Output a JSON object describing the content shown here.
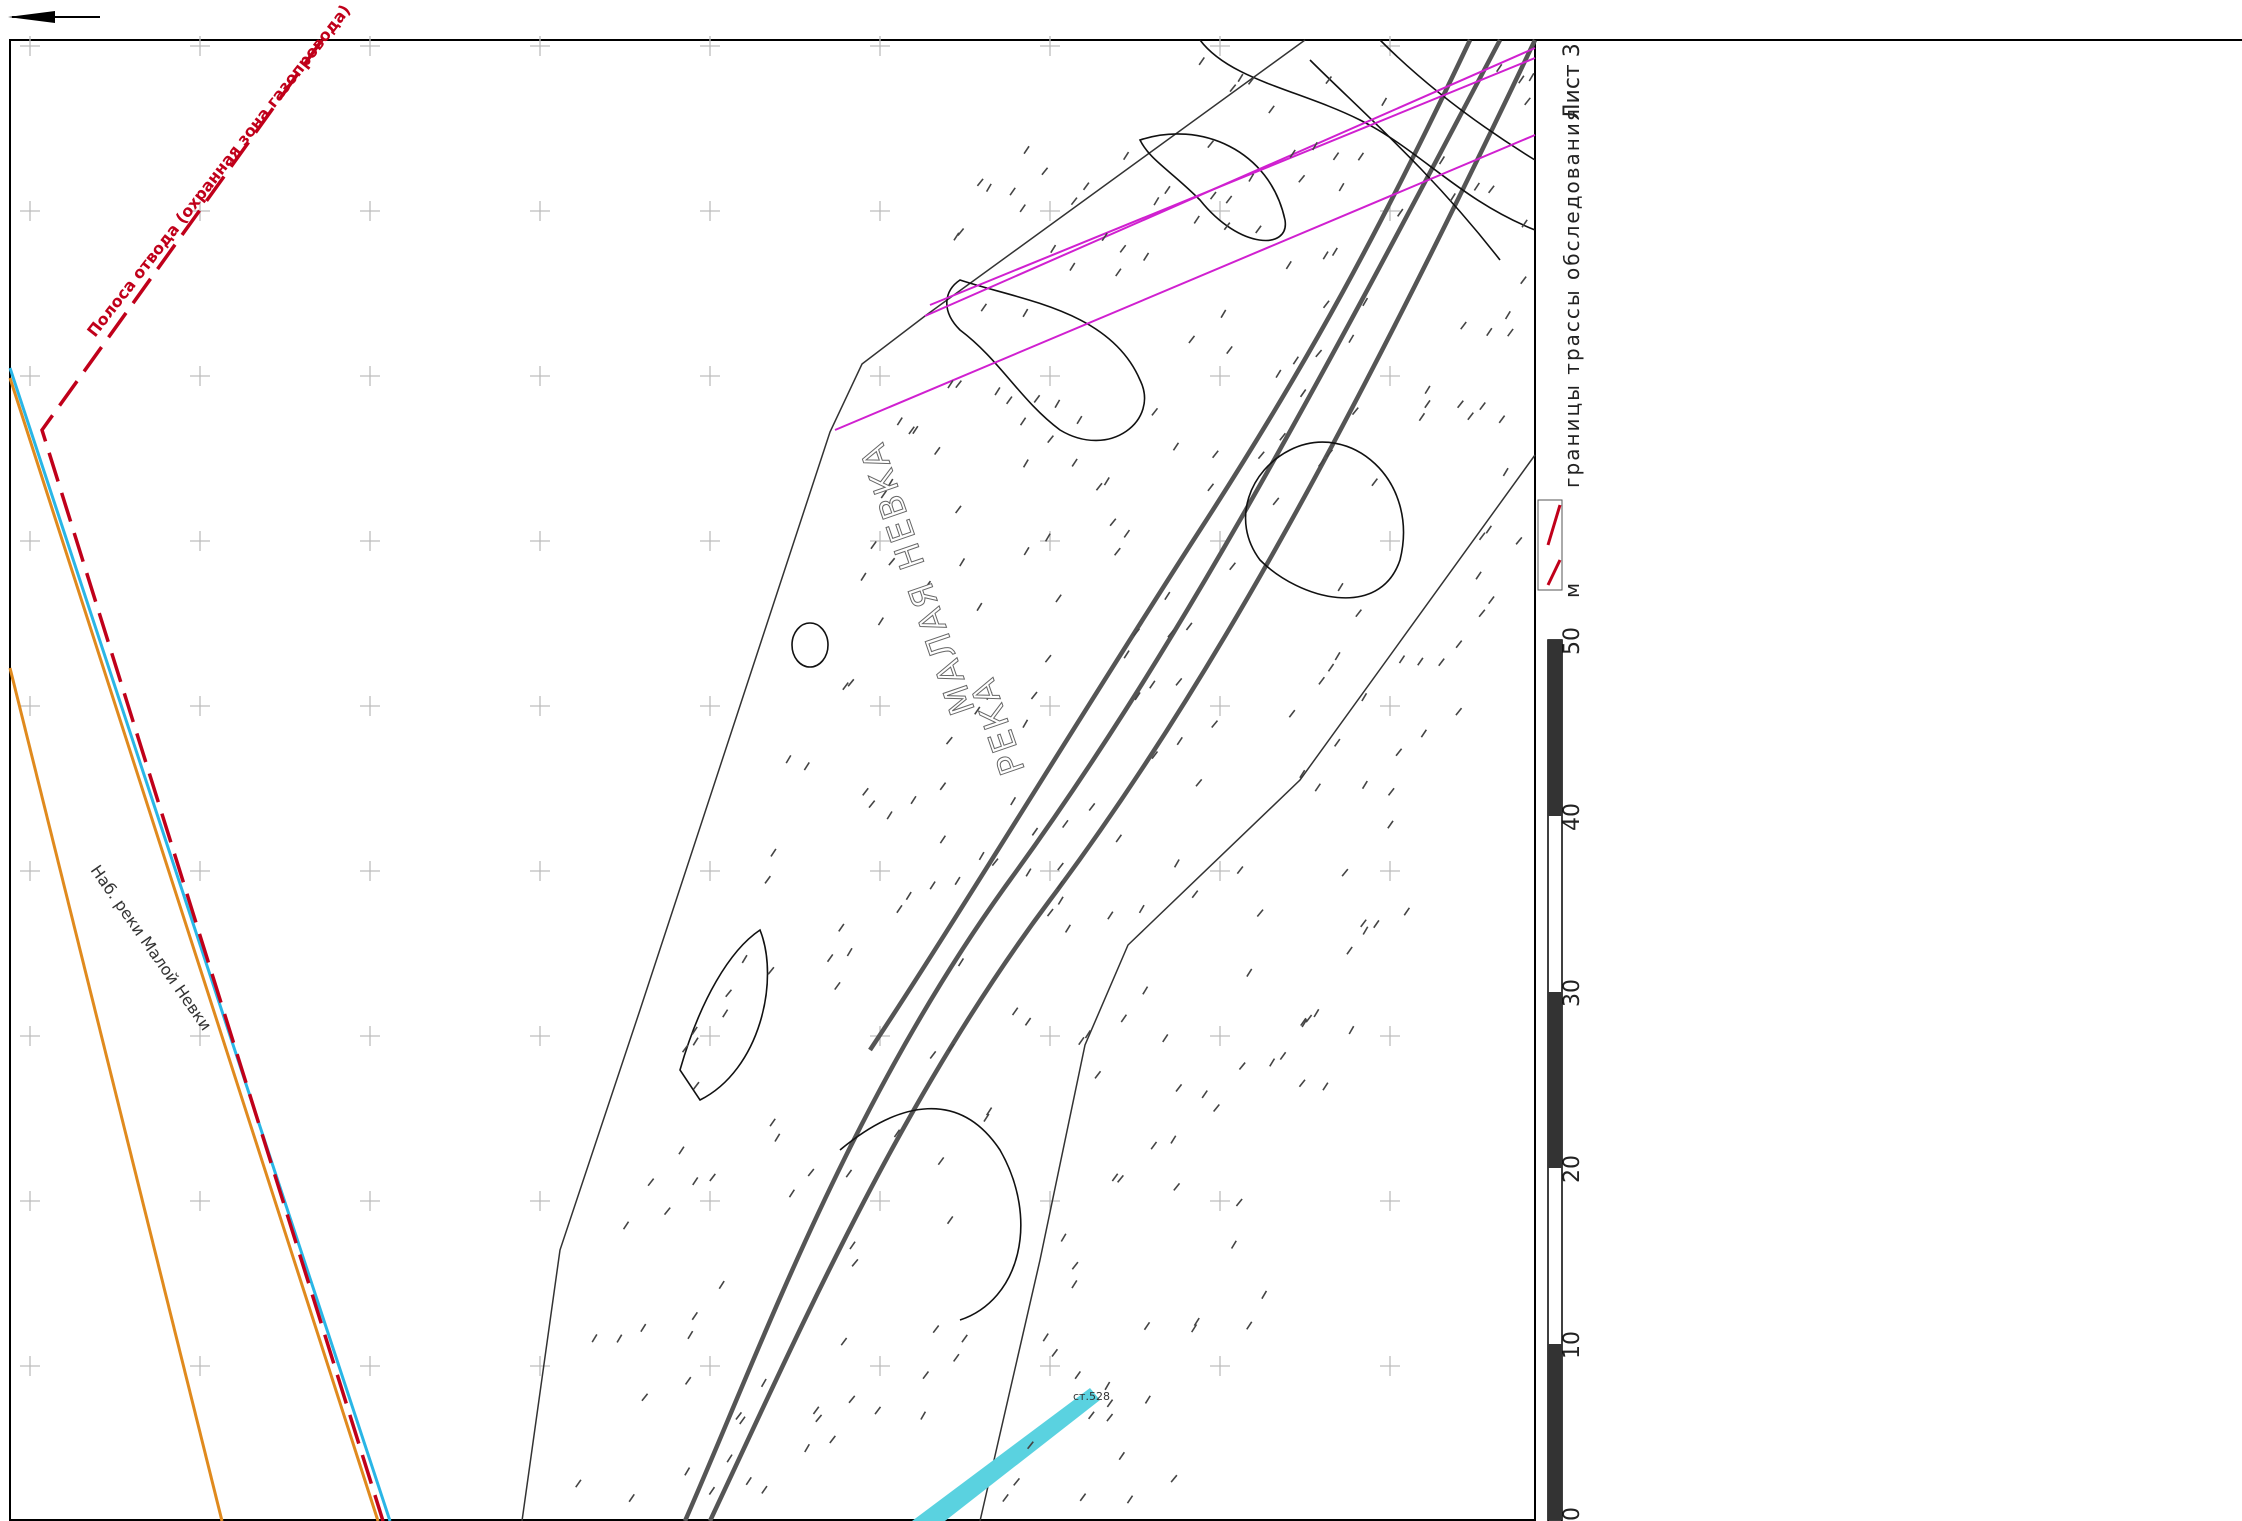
{
  "north_arrow_icon": "arrow-left-icon",
  "sheet_label": "Лист 3",
  "legend": {
    "boundary_label": "границы трассы обследования",
    "boundary_color": "#c0001a"
  },
  "scale_bar": {
    "unit": "м",
    "ticks": [
      "0",
      "10",
      "20",
      "30",
      "40",
      "50"
    ]
  },
  "map": {
    "strip_label": "Полоса отвода (охранная зона газопровода)",
    "embankment_label": "Наб. реки Малой Невки",
    "river_label_1": "МАЛАЯ НЕВКА",
    "river_label_2": "РЕКА",
    "station_label": "ст.528",
    "colors": {
      "orange_line": "#e08a1e",
      "cyan_line": "#29b6e6",
      "magenta_line": "#d020d0",
      "teal_band": "#5ad2e0",
      "contour": "#111111",
      "grid_cross": "#bbbbbb"
    }
  }
}
